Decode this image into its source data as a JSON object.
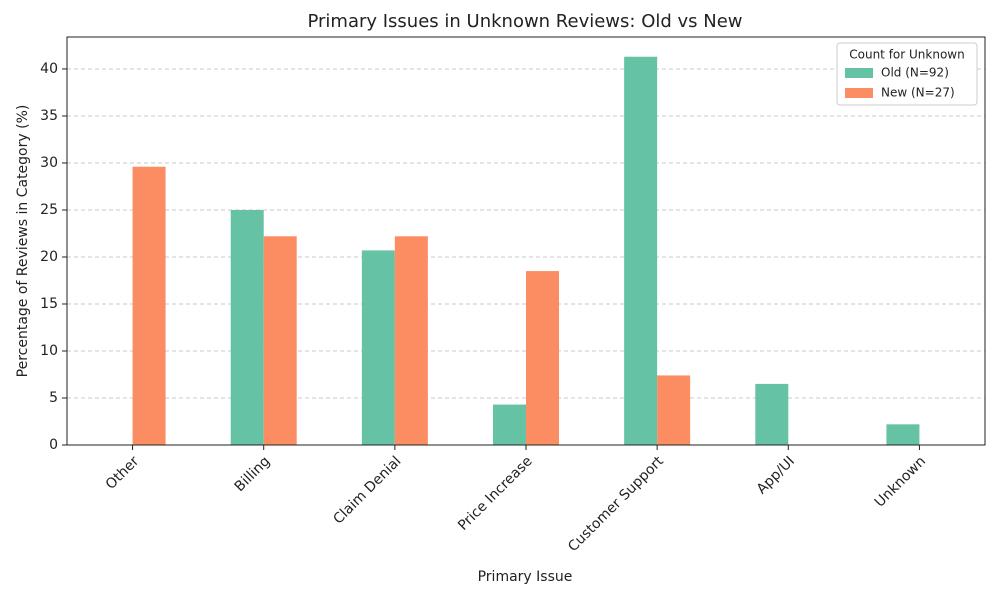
{
  "chart_data": {
    "type": "bar",
    "title": "Primary Issues in Unknown Reviews: Old vs New",
    "x_label": "Primary Issue",
    "y_label": "Percentage of Reviews in Category (%)",
    "categories": [
      "Other",
      "Billing",
      "Claim Denial",
      "Price Increase",
      "Customer Support",
      "App/UI",
      "Unknown"
    ],
    "series": [
      {
        "name": "Old (N=92)",
        "color": "#66c2a5",
        "values": [
          0,
          25.0,
          20.7,
          4.3,
          41.3,
          6.5,
          2.2
        ]
      },
      {
        "name": "New (N=27)",
        "color": "#fc8d62",
        "values": [
          29.6,
          22.2,
          22.2,
          18.5,
          7.4,
          0,
          0
        ]
      }
    ],
    "legend_title": "Count for Unknown",
    "legend_position": "upper right",
    "ylim": [
      0,
      43.4
    ],
    "yticks": [
      0,
      5,
      10,
      15,
      20,
      25,
      30,
      35,
      40
    ],
    "grid": true
  }
}
